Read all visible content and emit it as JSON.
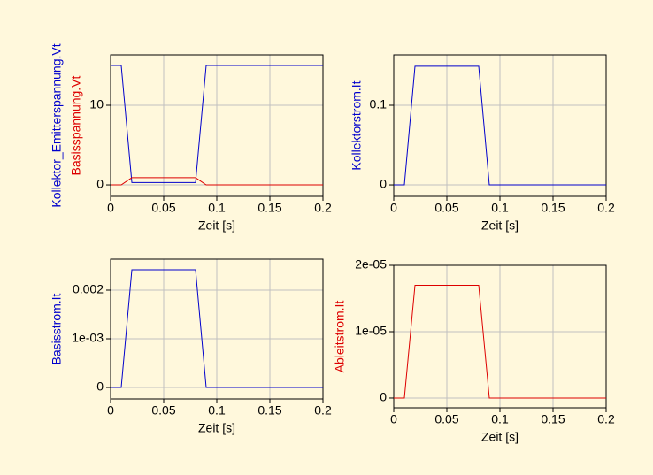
{
  "chart_data": [
    {
      "type": "line",
      "xlabel": "Zeit [s]",
      "x": [
        0,
        0.01,
        0.02,
        0.08,
        0.09,
        0.2
      ],
      "series": [
        {
          "name": "Kollektor_Emitterspannung.Vt",
          "color": "#0000cc",
          "values": [
            15,
            15,
            0.3,
            0.3,
            15,
            15
          ]
        },
        {
          "name": "Basisspannung.Vt",
          "color": "#dd0000",
          "values": [
            0,
            0,
            0.9,
            0.9,
            0,
            0
          ]
        }
      ],
      "xlim": [
        0,
        0.2
      ],
      "xticks": [
        0,
        0.05,
        0.1,
        0.15,
        0.2
      ],
      "ylim": [
        -1.44,
        16.33
      ],
      "yticks": [
        0,
        10
      ],
      "grid": true
    },
    {
      "type": "line",
      "xlabel": "Zeit [s]",
      "x": [
        0,
        0.01,
        0.02,
        0.08,
        0.09,
        0.2
      ],
      "series": [
        {
          "name": "Kollektorstrom.It",
          "color": "#0000cc",
          "values": [
            0,
            0,
            0.149,
            0.149,
            0,
            0
          ]
        }
      ],
      "xlim": [
        0,
        0.2
      ],
      "xticks": [
        0,
        0.05,
        0.1,
        0.15,
        0.2
      ],
      "ylim": [
        -0.0144,
        0.1633
      ],
      "yticks": [
        0,
        0.1
      ],
      "grid": true
    },
    {
      "type": "line",
      "xlabel": "Zeit [s]",
      "x": [
        0,
        0.01,
        0.02,
        0.08,
        0.09,
        0.2
      ],
      "series": [
        {
          "name": "Basisstrom.It",
          "color": "#0000cc",
          "values": [
            0,
            0,
            0.002418,
            0.002418,
            0,
            0
          ]
        }
      ],
      "xlim": [
        0,
        0.2
      ],
      "xticks": [
        0,
        0.05,
        0.1,
        0.15,
        0.2
      ],
      "ylim": [
        -0.000236,
        0.002636
      ],
      "yticks": [
        0,
        {
          "value": 0.001,
          "label": "1e-03"
        },
        0.002
      ],
      "grid": true
    },
    {
      "type": "line",
      "xlabel": "Zeit [s]",
      "x": [
        0,
        0.01,
        0.02,
        0.08,
        0.09,
        0.2
      ],
      "series": [
        {
          "name": "Ableitstrom.It",
          "color": "#dd0000",
          "values": [
            0,
            0,
            1.7e-05,
            1.7e-05,
            0,
            0
          ]
        }
      ],
      "xlim": [
        0,
        0.2
      ],
      "xticks": [
        0,
        0.05,
        0.1,
        0.15,
        0.2
      ],
      "ylim": [
        -1.47e-06,
        2e-05
      ],
      "yticks": [
        0,
        {
          "value": 1e-05,
          "label": "1e-05"
        },
        {
          "value": 2e-05,
          "label": "2e-05"
        }
      ],
      "grid": true
    }
  ]
}
